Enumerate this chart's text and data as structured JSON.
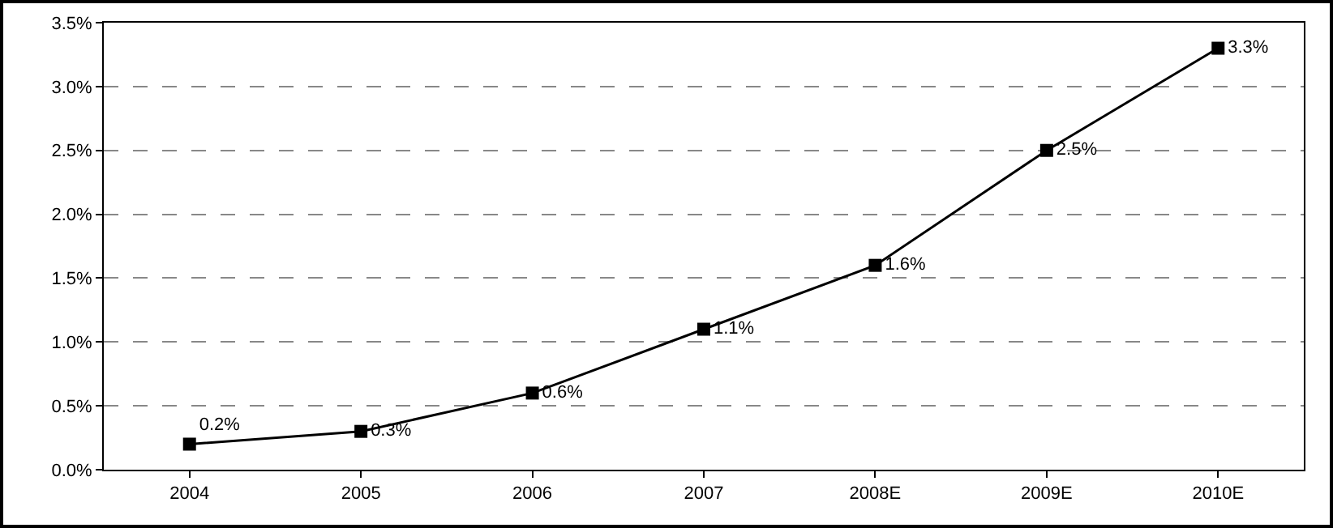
{
  "chart_data": {
    "type": "line",
    "categories": [
      "2004",
      "2005",
      "2006",
      "2007",
      "2008E",
      "2009E",
      "2010E"
    ],
    "series": [
      {
        "color": "#000000",
        "values": [
          0.2,
          0.3,
          0.6,
          1.1,
          1.6,
          2.5,
          3.3
        ],
        "value_labels": [
          "0.2%",
          "0.3%",
          "0.6%",
          "1.1%",
          "1.6%",
          "2.5%",
          "3.3%"
        ]
      }
    ],
    "ylim": [
      0,
      3.5
    ],
    "yticks": [
      {
        "value": 0,
        "label": "0.0%"
      },
      {
        "value": 0.5,
        "label": "0.5%"
      },
      {
        "value": 1,
        "label": "1.0%"
      },
      {
        "value": 1.5,
        "label": "1.5%"
      },
      {
        "value": 2,
        "label": "2.0%"
      },
      {
        "value": 2.5,
        "label": "2.5%"
      },
      {
        "value": 3,
        "label": "3.0%"
      },
      {
        "value": 3.5,
        "label": "3.5%"
      }
    ],
    "grid": "y",
    "legend": false,
    "marker": "square",
    "line_style": "solid"
  }
}
